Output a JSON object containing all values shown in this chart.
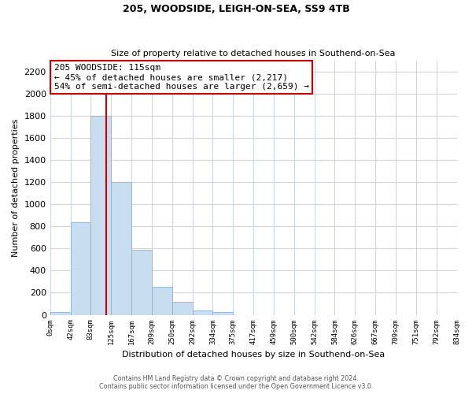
{
  "title": "205, WOODSIDE, LEIGH-ON-SEA, SS9 4TB",
  "subtitle": "Size of property relative to detached houses in Southend-on-Sea",
  "xlabel": "Distribution of detached houses by size in Southend-on-Sea",
  "ylabel": "Number of detached properties",
  "bin_labels": [
    "0sqm",
    "42sqm",
    "83sqm",
    "125sqm",
    "167sqm",
    "209sqm",
    "250sqm",
    "292sqm",
    "334sqm",
    "375sqm",
    "417sqm",
    "459sqm",
    "500sqm",
    "542sqm",
    "584sqm",
    "626sqm",
    "667sqm",
    "709sqm",
    "751sqm",
    "792sqm",
    "834sqm"
  ],
  "bar_values": [
    25,
    840,
    1800,
    1200,
    590,
    255,
    120,
    40,
    25,
    0,
    0,
    0,
    0,
    0,
    0,
    0,
    0,
    0,
    0,
    0
  ],
  "bar_color": "#c9ddf0",
  "bar_edge_color": "#8ab4d8",
  "annotation_title": "205 WOODSIDE: 115sqm",
  "annotation_line1": "← 45% of detached houses are smaller (2,217)",
  "annotation_line2": "54% of semi-detached houses are larger (2,659) →",
  "annotation_box_color": "#ffffff",
  "annotation_box_edge": "#cc0000",
  "vline_color": "#cc0000",
  "ylim": [
    0,
    2300
  ],
  "yticks": [
    0,
    200,
    400,
    600,
    800,
    1000,
    1200,
    1400,
    1600,
    1800,
    2000,
    2200
  ],
  "footer1": "Contains HM Land Registry data © Crown copyright and database right 2024.",
  "footer2": "Contains public sector information licensed under the Open Government Licence v3.0.",
  "background_color": "#ffffff",
  "grid_color": "#c8d8e8"
}
